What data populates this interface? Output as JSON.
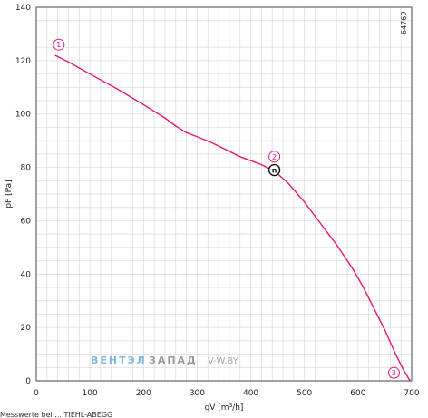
{
  "chart_data": {
    "type": "line",
    "title": "",
    "xlabel": "qV [m³/h]",
    "ylabel": "pF [Pa]",
    "xlim": [
      0,
      700
    ],
    "ylim": [
      0,
      140
    ],
    "x_ticks": [
      "0",
      "100",
      "200",
      "300",
      "400",
      "500",
      "600",
      "700"
    ],
    "y_ticks": [
      "0",
      "20",
      "40",
      "60",
      "80",
      "100",
      "120",
      "140"
    ],
    "grid": true,
    "series": [
      {
        "name": "",
        "color": "#e2157a",
        "x": [
          35,
          60,
          100,
          150,
          200,
          240,
          260,
          280,
          300,
          330,
          360,
          380,
          400,
          420,
          445,
          470,
          500,
          530,
          560,
          590,
          610,
          630,
          650,
          670,
          685,
          697
        ],
        "y": [
          122,
          119.5,
          115,
          109.5,
          103.5,
          98.5,
          95.5,
          93,
          91.5,
          89,
          86,
          84,
          82.5,
          81,
          78.5,
          74,
          67,
          59,
          51,
          42,
          35,
          27,
          19,
          10,
          4,
          0
        ]
      }
    ],
    "point_markers": [
      {
        "label": "1",
        "x": 42,
        "y": 126
      },
      {
        "label": "2",
        "x": 444,
        "y": 84
      },
      {
        "label": "3",
        "x": 667,
        "y": 3
      }
    ],
    "operating_point": {
      "label": "n",
      "x": 444,
      "y": 79
    },
    "curve_label": {
      "text": "I",
      "x": 320,
      "y": 97
    },
    "chart_code": "64769"
  },
  "watermark": {
    "part1": "ВЕНТЭЛ",
    "part2": "ЗАПАД",
    "url": "V-W.BY"
  },
  "footer_text": "Messwerte bei ... TIEHL-ABEGG"
}
